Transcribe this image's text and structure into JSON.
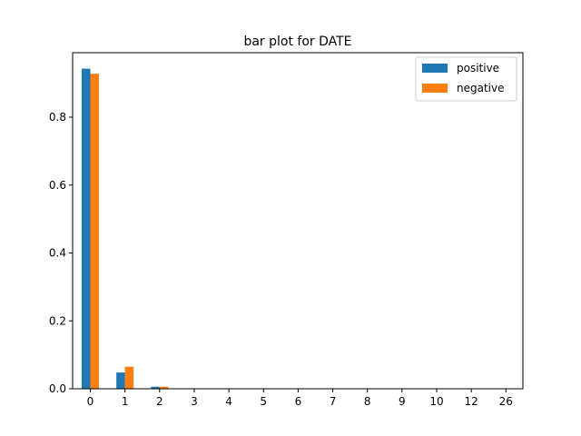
{
  "chart_data": {
    "type": "bar",
    "title": "bar plot for DATE",
    "xlabel": "",
    "ylabel": "",
    "categories": [
      "0",
      "1",
      "2",
      "3",
      "4",
      "5",
      "6",
      "7",
      "8",
      "9",
      "10",
      "12",
      "26"
    ],
    "series": [
      {
        "name": "positive",
        "color": "#1f77b4",
        "values": [
          0.943,
          0.048,
          0.006,
          0.0008,
          0.0004,
          0.0003,
          0.0002,
          0.0001,
          0.0001,
          0.0001,
          0.0001,
          0.0001,
          0.0001
        ]
      },
      {
        "name": "negative",
        "color": "#ff7f0e",
        "values": [
          0.928,
          0.065,
          0.006,
          0.0005,
          0.0003,
          0.0002,
          0.0001,
          0.0001,
          0.0001,
          0.0001,
          0.0001,
          0.0001,
          0.0001
        ]
      }
    ],
    "ylim": [
      0,
      0.99
    ],
    "yticks": [
      0.0,
      0.2,
      0.4,
      0.6,
      0.8
    ],
    "ytick_labels": [
      "0.0",
      "0.2",
      "0.4",
      "0.6",
      "0.8"
    ],
    "grid": false,
    "legend_position": "top-right"
  }
}
